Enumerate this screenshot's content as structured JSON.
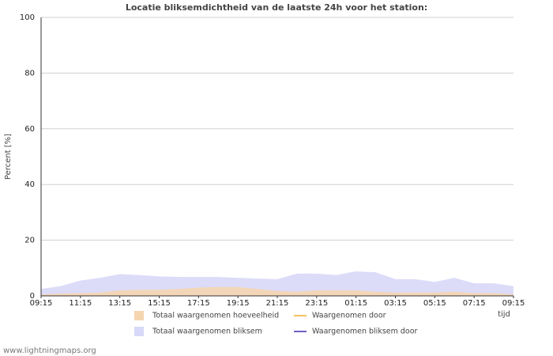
{
  "chart_data": {
    "type": "area",
    "title": "Locatie bliksemdichtheid van de laatste 24h voor het station:",
    "y_label": "Percent   [%]",
    "x_label": "tijd",
    "source": "www.lightningmaps.org",
    "x": [
      0,
      1,
      2,
      3,
      4,
      5,
      6,
      7,
      8,
      9,
      10,
      11,
      12,
      13,
      14,
      15,
      16,
      17,
      18,
      19,
      20,
      21,
      22,
      23,
      24
    ],
    "xlim": [
      0,
      24
    ],
    "xticks": [
      {
        "value": 0,
        "label": "09:15"
      },
      {
        "value": 2,
        "label": "11:15"
      },
      {
        "value": 4,
        "label": "13:15"
      },
      {
        "value": 6,
        "label": "15:15"
      },
      {
        "value": 8,
        "label": "17:15"
      },
      {
        "value": 10,
        "label": "19:15"
      },
      {
        "value": 12,
        "label": "21:15"
      },
      {
        "value": 14,
        "label": "23:15"
      },
      {
        "value": 16,
        "label": "01:15"
      },
      {
        "value": 18,
        "label": "03:15"
      },
      {
        "value": 20,
        "label": "05:15"
      },
      {
        "value": 22,
        "label": "07:15"
      },
      {
        "value": 24,
        "label": "09:15"
      }
    ],
    "ylim": [
      0,
      100
    ],
    "yticks": [
      0,
      20,
      40,
      60,
      80,
      100
    ],
    "grid": true,
    "series": [
      {
        "name": "Totaal waargenomen bliksem",
        "color": "#d8d8f8",
        "style": "area",
        "values": [
          2.5,
          3.5,
          5.5,
          6.5,
          7.8,
          7.5,
          7,
          6.8,
          6.8,
          6.8,
          6.5,
          6.2,
          6,
          8,
          8,
          7.5,
          8.8,
          8.5,
          6,
          6,
          5,
          6.5,
          4.5,
          4.5,
          3.5
        ]
      },
      {
        "name": "Totaal waargenomen hoeveelheid",
        "color": "#f5d5b0",
        "style": "area",
        "values": [
          0.5,
          0.8,
          1,
          1.2,
          2,
          2.2,
          2.2,
          2.5,
          3,
          3.2,
          3.2,
          2.5,
          1.8,
          1.5,
          2,
          2,
          2,
          1.5,
          1.2,
          1.2,
          1.2,
          1.5,
          1,
          1,
          0.5
        ]
      },
      {
        "name": "Waargenomen door",
        "color": "#f5c060",
        "style": "line"
      },
      {
        "name": "Waargenomen bliksem door",
        "color": "#7060c0",
        "style": "line"
      }
    ]
  }
}
